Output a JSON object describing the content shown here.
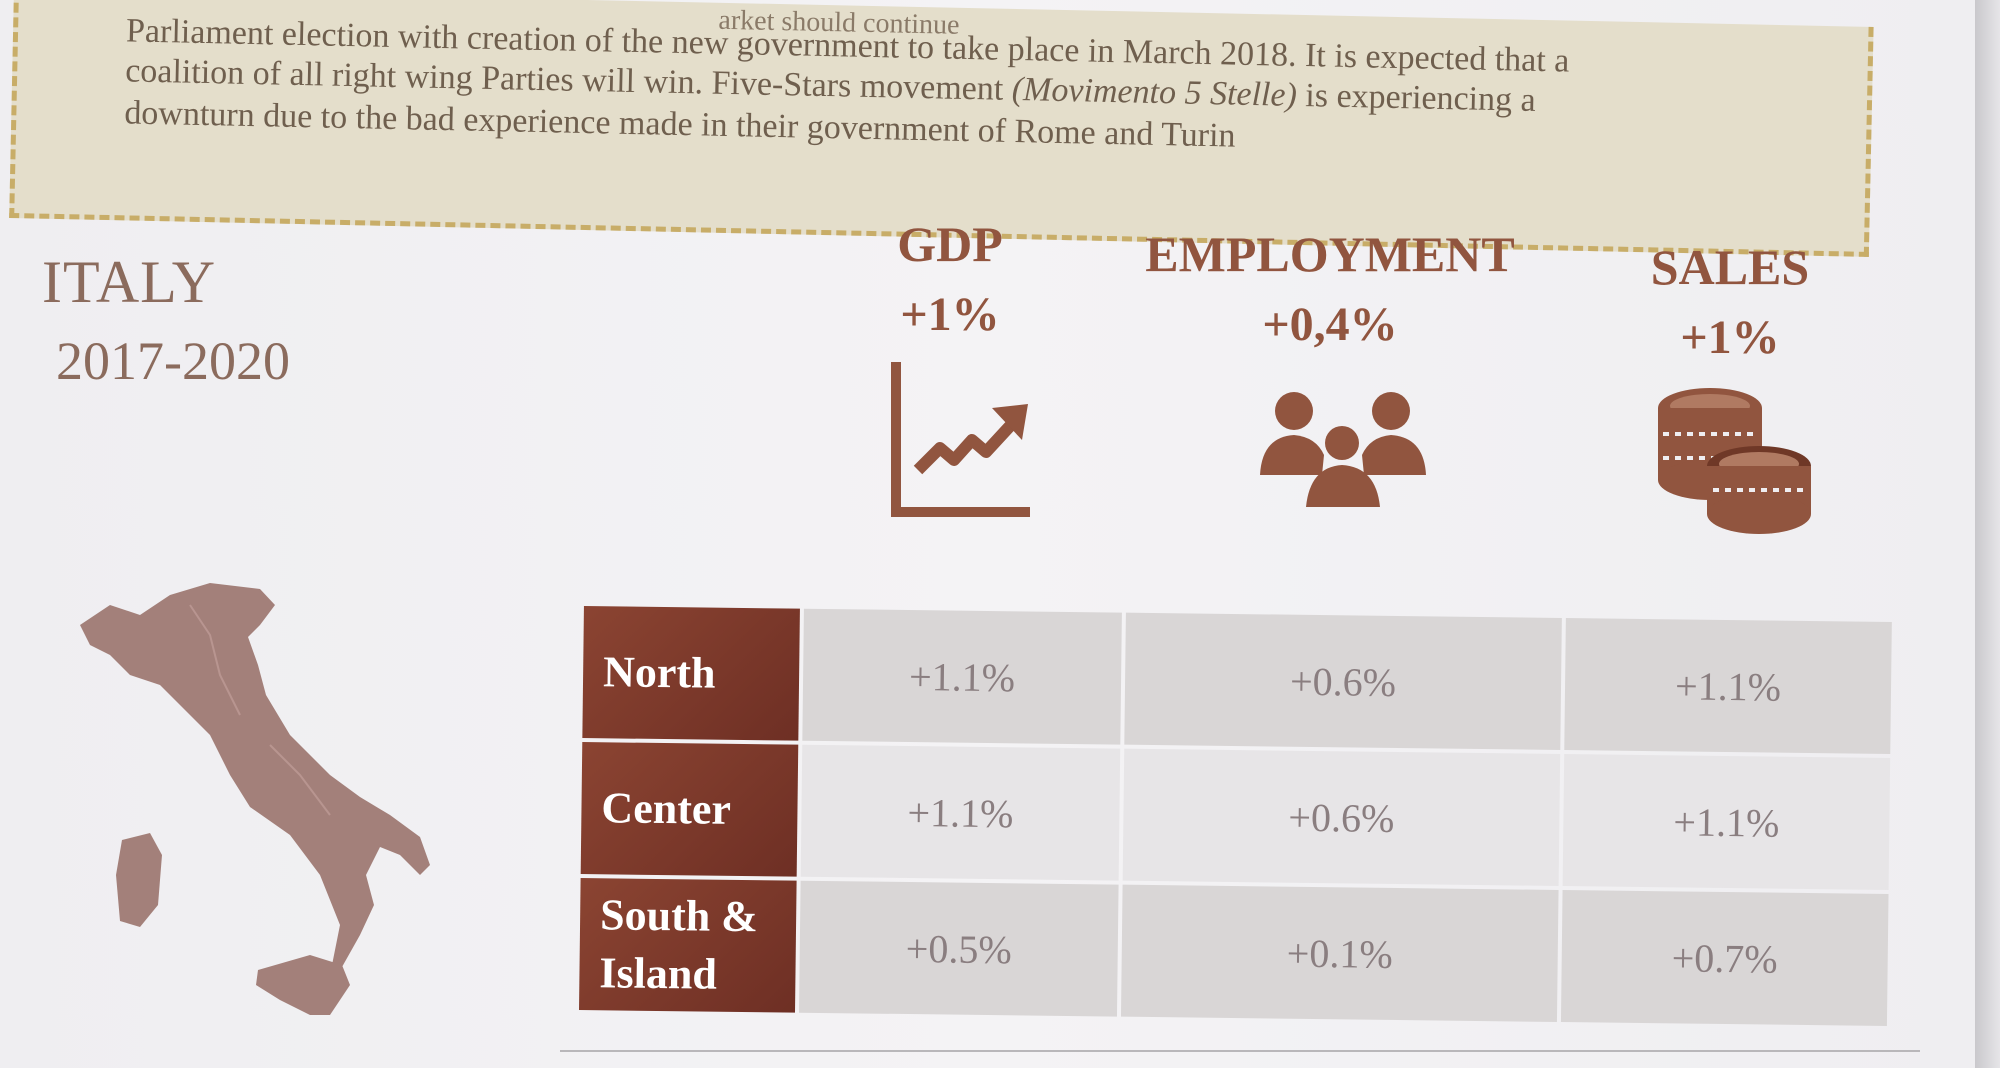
{
  "notice": {
    "top_fragment": "arket should continue",
    "line1": "Parliament election with creation of the new government to take place in March 2018. It is expected that a",
    "line2": "coalition of all right wing Parties will win. Five-Stars movement",
    "line2_italic": "(Movimento 5 Stelle)",
    "line2_end": "is experiencing a",
    "line3": "downturn due to the bad experience made in their government of Rome and Turin"
  },
  "country": {
    "name": "ITALY",
    "period": "2017-2020"
  },
  "metrics": [
    {
      "label": "GDP",
      "value": "+1%",
      "icon": "growth-chart-icon"
    },
    {
      "label": "EMPLOYMENT",
      "value": "+0,4%",
      "icon": "people-group-icon"
    },
    {
      "label": "SALES",
      "value": "+1%",
      "icon": "coin-stacks-icon"
    }
  ],
  "regions": {
    "rows": [
      {
        "name": "North",
        "gdp": "+1.1%",
        "employment": "+0.6%",
        "sales": "+1.1%"
      },
      {
        "name": "Center",
        "gdp": "+1.1%",
        "employment": "+0.6%",
        "sales": "+1.1%"
      },
      {
        "name": "South & Island",
        "gdp": "+0.5%",
        "employment": "+0.1%",
        "sales": "+0.7%"
      }
    ]
  },
  "colors": {
    "accent": "#91553f",
    "region_cell": "#7c3a2b",
    "map": "#a3807a",
    "notice_bg": "#e4decb",
    "notice_border": "#c8ad68"
  }
}
